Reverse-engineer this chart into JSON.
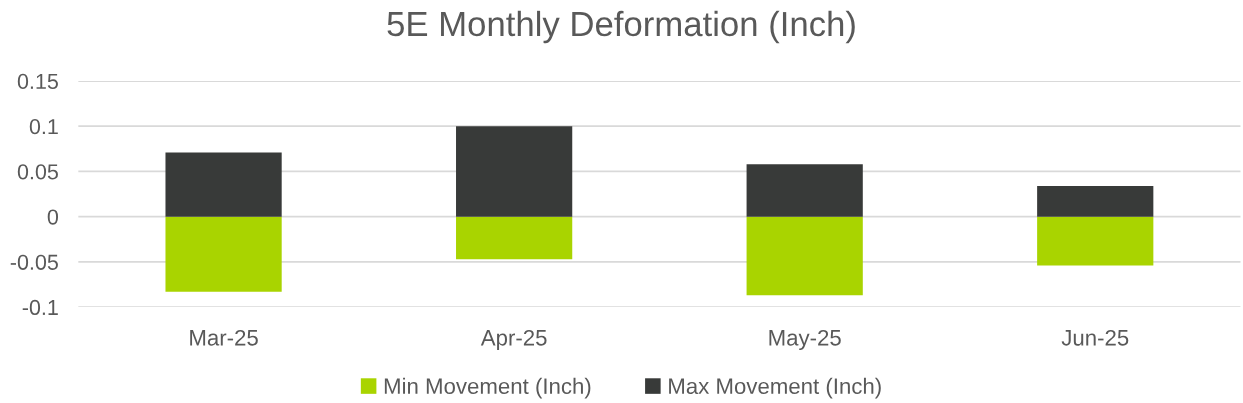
{
  "chart_data": {
    "type": "bar",
    "title": "5E Monthly Deformation (Inch)",
    "categories": [
      "Mar-25",
      "Apr-25",
      "May-25",
      "Jun-25"
    ],
    "series": [
      {
        "name": "Min Movement (Inch)",
        "color": "#a9d400",
        "values": [
          -0.083,
          -0.047,
          -0.087,
          -0.054
        ]
      },
      {
        "name": "Max Movement (Inch)",
        "color": "#383a39",
        "values": [
          0.071,
          0.1,
          0.058,
          0.034
        ]
      }
    ],
    "stacked": true,
    "ylim": [
      -0.1,
      0.15
    ],
    "yticks": [
      -0.1,
      -0.05,
      0,
      0.05,
      0.1,
      0.15
    ],
    "grid": "y",
    "legend": "bottom"
  }
}
